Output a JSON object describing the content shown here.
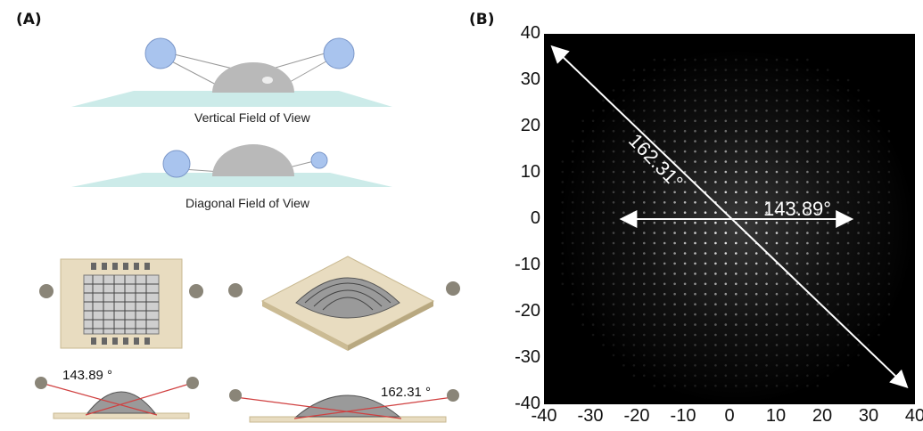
{
  "panels": {
    "a_label": "(A)",
    "b_label": "(B)"
  },
  "panel_a": {
    "vertical_caption": "Vertical Field of View",
    "diagonal_caption": "Diagonal Field of View",
    "angle_left": "143.89 °",
    "angle_right": "162.31 °",
    "colors": {
      "dome": "#b9b9b9",
      "sphere": "#a9c4ee",
      "plane": "#bfe6e3",
      "board": "#e8dcc0",
      "ray": "#d04040"
    }
  },
  "chart_data": {
    "type": "heatmap",
    "xlim": [
      -40,
      40
    ],
    "ylim": [
      -40,
      40
    ],
    "x_ticks": [
      -40,
      -30,
      -20,
      -10,
      0,
      10,
      20,
      30,
      40
    ],
    "y_ticks": [
      40,
      30,
      20,
      10,
      0,
      -10,
      -20,
      -30,
      -40
    ],
    "annotations": [
      {
        "text": "162.31°",
        "arrow_from": [
          -38,
          37
        ],
        "arrow_to": [
          38,
          -36
        ]
      },
      {
        "text": "143.89°",
        "arrow_from": [
          -23,
          0
        ],
        "arrow_to": [
          26,
          0
        ]
      }
    ],
    "background": "#000000"
  }
}
